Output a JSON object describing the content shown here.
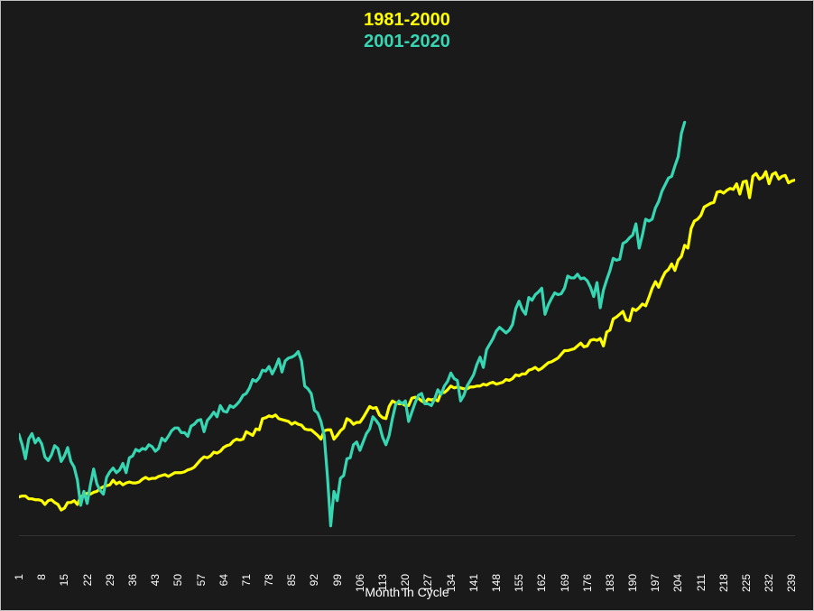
{
  "chart": {
    "type": "line",
    "background_color": "#1a1a1a",
    "outer_border_color": "#bfbfbf",
    "x_axis_line_color": "#d9d9d9",
    "tick_label_color": "#ffffff",
    "tick_label_fontsize": 12,
    "axis_title_fontsize": 14,
    "legend_fontsize": 20,
    "legend_fontweight": "bold",
    "xlabel": "Month In Cycle",
    "xlim": [
      1,
      240
    ],
    "ylim": [
      92,
      550
    ],
    "xtick_start": 1,
    "xtick_step": 7,
    "xtick_count": 35,
    "line_width": 3.2,
    "series": [
      {
        "name": "1981-2000",
        "label": "1981-2000",
        "color": "#ffff00",
        "xstep": 1,
        "y": [
          134,
          135,
          135,
          132,
          132,
          131,
          131,
          130,
          126,
          130,
          131,
          128,
          126,
          120,
          122,
          128,
          128,
          130,
          126,
          134,
          136,
          138,
          137,
          139,
          140,
          143,
          145,
          146,
          147,
          152,
          148,
          150,
          147,
          149,
          150,
          149,
          149,
          150,
          153,
          155,
          153,
          154,
          154,
          156,
          157,
          158,
          156,
          158,
          160,
          160,
          160,
          161,
          163,
          164,
          166,
          170,
          174,
          177,
          176,
          178,
          182,
          181,
          183,
          187,
          189,
          190,
          194,
          196,
          195,
          196,
          204,
          202,
          200,
          207,
          206,
          218,
          219,
          221,
          220,
          222,
          218,
          217,
          216,
          215,
          212,
          214,
          212,
          211,
          207,
          206,
          206,
          203,
          200,
          196,
          205,
          206,
          206,
          196,
          200,
          205,
          208,
          218,
          216,
          212,
          214,
          214,
          219,
          225,
          231,
          229,
          230,
          222,
          219,
          218,
          231,
          237,
          235,
          234,
          234,
          232,
          232,
          240,
          241,
          240,
          237,
          235,
          239,
          238,
          239,
          237,
          246,
          246,
          249,
          253,
          251,
          252,
          251,
          250,
          250,
          252,
          252,
          253,
          253,
          255,
          254,
          256,
          257,
          255,
          256,
          257,
          260,
          259,
          261,
          265,
          264,
          266,
          266,
          270,
          271,
          273,
          270,
          272,
          275,
          278,
          279,
          281,
          283,
          287,
          291,
          291,
          292,
          293,
          296,
          299,
          295,
          296,
          302,
          303,
          302,
          304,
          296,
          311,
          313,
          325,
          327,
          330,
          333,
          324,
          323,
          336,
          334,
          337,
          341,
          339,
          348,
          358,
          365,
          359,
          368,
          375,
          378,
          384,
          377,
          388,
          392,
          404,
          401,
          422,
          430,
          432,
          436,
          445,
          447,
          449,
          450,
          461,
          462,
          460,
          463,
          465,
          464,
          470,
          459,
          472,
          473,
          455,
          478,
          481,
          475,
          477,
          483,
          470,
          480,
          482,
          475,
          478,
          479,
          471,
          473,
          474
        ]
      },
      {
        "name": "2001-2020",
        "label": "2001-2020",
        "color": "#37d6b3",
        "xstep": 1,
        "y": [
          201,
          190,
          175,
          196,
          202,
          192,
          197,
          191,
          177,
          173,
          179,
          189,
          186,
          172,
          178,
          187,
          172,
          166,
          152,
          125,
          140,
          127,
          147,
          164,
          148,
          141,
          137,
          155,
          161,
          165,
          160,
          163,
          170,
          160,
          176,
          178,
          185,
          183,
          186,
          185,
          190,
          188,
          183,
          186,
          197,
          194,
          199,
          205,
          208,
          208,
          203,
          203,
          199,
          210,
          212,
          216,
          217,
          204,
          216,
          220,
          225,
          220,
          232,
          226,
          225,
          232,
          230,
          233,
          237,
          243,
          245,
          251,
          260,
          258,
          262,
          270,
          269,
          274,
          266,
          273,
          282,
          268,
          280,
          283,
          284,
          286,
          290,
          280,
          253,
          250,
          245,
          227,
          224,
          215,
          200,
          156,
          103,
          140,
          130,
          154,
          157,
          175,
          176,
          190,
          193,
          184,
          193,
          202,
          207,
          220,
          216,
          211,
          198,
          190,
          200,
          218,
          233,
          237,
          234,
          237,
          215,
          225,
          235,
          243,
          245,
          234,
          234,
          232,
          239,
          249,
          244,
          253,
          258,
          267,
          261,
          259,
          237,
          243,
          253,
          259,
          265,
          276,
          284,
          273,
          292,
          298,
          304,
          312,
          316,
          313,
          310,
          313,
          319,
          336,
          344,
          335,
          330,
          348,
          345,
          351,
          354,
          358,
          330,
          340,
          347,
          353,
          351,
          352,
          358,
          371,
          369,
          369,
          373,
          368,
          369,
          366,
          359,
          349,
          364,
          337,
          356,
          367,
          377,
          390,
          388,
          389,
          406,
          408,
          412,
          415,
          427,
          401,
          415,
          432,
          430,
          432,
          444,
          451,
          462,
          469,
          476,
          478,
          489,
          499,
          524,
          536
        ]
      }
    ]
  }
}
